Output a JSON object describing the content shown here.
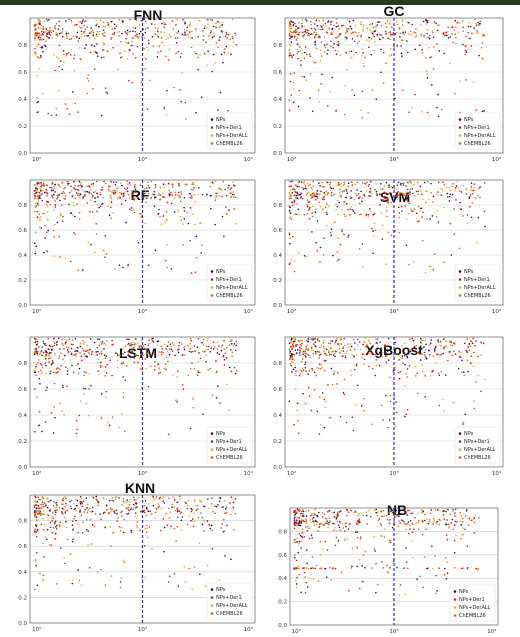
{
  "colors": {
    "NPs": "#3a0a4f",
    "NPs+Der1": "#d81b1b",
    "NPs+DerALL": "#f0a21c",
    "ChEMBL26": "#e85a14",
    "threshold": "#2d2dcf",
    "grid": "#c9c9c9",
    "axis": "#444444",
    "top_bar": "#2f3a22"
  },
  "chart_data": [
    {
      "type": "scatter",
      "title": "FNN",
      "x_scale": "log",
      "xlim": [
        1,
        10000
      ],
      "ylim": [
        0,
        1
      ],
      "y_ticks": [
        "0.0",
        "0.2",
        "0.4",
        "0.6",
        "0.8"
      ],
      "x_ticks": [
        "10²",
        "10³",
        "10⁴"
      ],
      "threshold_x": 1000,
      "grid": "horizontal",
      "legend": {
        "placement": "bottom-right",
        "entries": [
          "NPs",
          "NPs+Der1",
          "NPs+DerALL",
          "ChEMBL26"
        ]
      }
    },
    {
      "type": "scatter",
      "title": "GC",
      "x_scale": "log",
      "xlim": [
        1,
        10000
      ],
      "ylim": [
        0,
        1
      ],
      "y_ticks": [
        "0.0",
        "0.2",
        "0.4",
        "0.6",
        "0.8"
      ],
      "x_ticks": [
        "10²",
        "10³",
        "10⁴"
      ],
      "threshold_x": 1000,
      "grid": "horizontal",
      "legend": {
        "placement": "bottom-right",
        "entries": [
          "NPs",
          "NPs+Der1",
          "NPs+DerALL",
          "ChEMBL26"
        ]
      }
    },
    {
      "type": "scatter",
      "title": "RF",
      "x_scale": "log",
      "xlim": [
        1,
        10000
      ],
      "ylim": [
        0,
        1
      ],
      "y_ticks": [
        "0.0",
        "0.2",
        "0.4",
        "0.6",
        "0.8"
      ],
      "x_ticks": [
        "10²",
        "10³",
        "10⁴"
      ],
      "threshold_x": 1000,
      "grid": "horizontal",
      "legend": {
        "placement": "bottom-right",
        "entries": [
          "NPs",
          "NPs+Der1",
          "NPs+DerALL",
          "ChEMBL26"
        ]
      }
    },
    {
      "type": "scatter",
      "title": "SVM",
      "x_scale": "log",
      "xlim": [
        1,
        10000
      ],
      "ylim": [
        0,
        1
      ],
      "y_ticks": [
        "0.0",
        "0.2",
        "0.4",
        "0.6",
        "0.8"
      ],
      "x_ticks": [
        "10²",
        "10³",
        "10⁴"
      ],
      "threshold_x": 1000,
      "grid": "horizontal",
      "legend": {
        "placement": "bottom-right",
        "entries": [
          "NPs",
          "NPs+Der1",
          "NPs+DerALL",
          "ChEMBL26"
        ]
      }
    },
    {
      "type": "scatter",
      "title": "LSTM",
      "x_scale": "log",
      "xlim": [
        1,
        10000
      ],
      "ylim": [
        0,
        1
      ],
      "y_ticks": [
        "0.0",
        "0.2",
        "0.4",
        "0.6",
        "0.8"
      ],
      "x_ticks": [
        "10²",
        "10³",
        "10⁴"
      ],
      "threshold_x": 1000,
      "grid": "horizontal",
      "legend": {
        "placement": "bottom-right",
        "entries": [
          "NPs",
          "NPs+Der1",
          "NPs+DerALL",
          "ChEMBL26"
        ]
      }
    },
    {
      "type": "scatter",
      "title": "XgBoost",
      "x_scale": "log",
      "xlim": [
        1,
        10000
      ],
      "ylim": [
        0,
        1
      ],
      "y_ticks": [
        "0.0",
        "0.2",
        "0.4",
        "0.6",
        "0.8"
      ],
      "x_ticks": [
        "10²",
        "10³",
        "10⁴"
      ],
      "threshold_x": 1000,
      "grid": "horizontal",
      "legend": {
        "placement": "bottom-right",
        "entries": [
          "NPs",
          "NPs+Der1",
          "NPs+DerALL",
          "ChEMBL26"
        ]
      }
    },
    {
      "type": "scatter",
      "title": "KNN",
      "x_scale": "log",
      "xlim": [
        1,
        10000
      ],
      "ylim": [
        0,
        1
      ],
      "y_ticks": [
        "0.0",
        "0.2",
        "0.4",
        "0.6",
        "0.8"
      ],
      "x_ticks": [
        "10²",
        "10³",
        "10⁴"
      ],
      "threshold_x": 1000,
      "grid": "horizontal",
      "legend": {
        "placement": "bottom-right",
        "entries": [
          "NPs",
          "NPs+Der1",
          "NPs+DerALL",
          "ChEMBL26"
        ]
      }
    },
    {
      "type": "scatter",
      "title": "NB",
      "x_scale": "log",
      "xlim": [
        1,
        10000
      ],
      "ylim": [
        0,
        1
      ],
      "y_ticks": [
        "0.0",
        "0.2",
        "0.4",
        "0.6",
        "0.8"
      ],
      "x_ticks": [
        "10²",
        "10³",
        "10⁴"
      ],
      "threshold_x": 1000,
      "grid": "horizontal",
      "legend": {
        "placement": "bottom-right",
        "entries": [
          "NPs",
          "NPs+Der1",
          "NPs+DerALL",
          "ChEMBL26"
        ]
      }
    }
  ]
}
